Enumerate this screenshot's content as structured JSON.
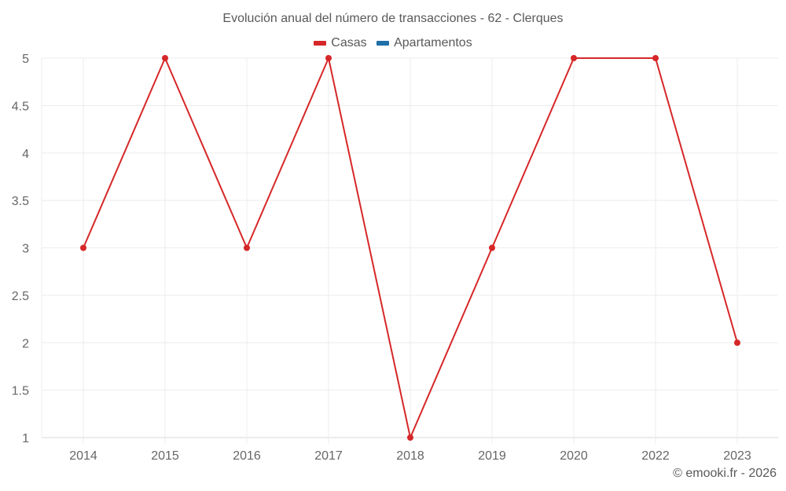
{
  "chart_data": {
    "type": "line",
    "title": "Evolución anual del número de transacciones - 62 - Clerques",
    "xlabel": "",
    "ylabel": "",
    "categories": [
      "2014",
      "2015",
      "2016",
      "2017",
      "2018",
      "2019",
      "2020",
      "2022",
      "2023"
    ],
    "series": [
      {
        "name": "Casas",
        "color": "#d62728",
        "values": [
          3,
          5,
          3,
          5,
          1,
          3,
          5,
          5,
          2
        ]
      },
      {
        "name": "Apartamentos",
        "color": "#1f6fa8",
        "values": []
      }
    ],
    "ylim": [
      1,
      5
    ],
    "yticks": [
      "1",
      "1.5",
      "2",
      "2.5",
      "3",
      "3.5",
      "4",
      "4.5",
      "5"
    ],
    "grid": true,
    "legend_position": "top"
  },
  "title": "Evolución anual del número de transacciones - 62 - Clerques",
  "legend": {
    "items": [
      {
        "label": "Casas",
        "color": "#d62728"
      },
      {
        "label": "Apartamentos",
        "color": "#1f6fa8"
      }
    ]
  },
  "credit": "© emooki.fr - 2026"
}
